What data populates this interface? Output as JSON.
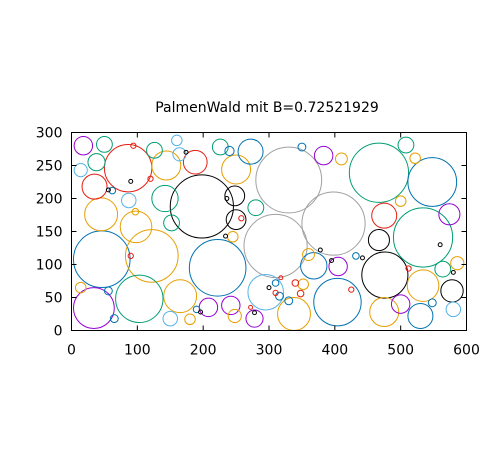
{
  "chart_data": {
    "type": "scatter",
    "title": "PalmenWald mit B=0.72521929",
    "xlabel": "",
    "ylabel": "",
    "xlim": [
      0,
      600
    ],
    "ylim": [
      0,
      300
    ],
    "x_ticks": [
      "0",
      "100",
      "200",
      "300",
      "400",
      "500",
      "600"
    ],
    "y_ticks": [
      "0",
      "50",
      "100",
      "150",
      "200",
      "250",
      "300"
    ],
    "grid": false,
    "legend": "none",
    "palette": {
      "gray": "#a0a0a0",
      "teal": "#009e73",
      "black": "#000000",
      "purple": "#9400d3",
      "blue": "#0072b2",
      "orange": "#e69f00",
      "red": "#e51e10",
      "cyan": "#56b4e9"
    },
    "circles": [
      {
        "x": 330,
        "y": 228,
        "r": 50,
        "color": "gray"
      },
      {
        "x": 398,
        "y": 162,
        "r": 48,
        "color": "gray"
      },
      {
        "x": 310,
        "y": 128,
        "r": 48,
        "color": "gray"
      },
      {
        "x": 198,
        "y": 188,
        "r": 48,
        "color": "black"
      },
      {
        "x": 46,
        "y": 108,
        "r": 43,
        "color": "blue"
      },
      {
        "x": 122,
        "y": 113,
        "r": 40,
        "color": "orange"
      },
      {
        "x": 222,
        "y": 95,
        "r": 43,
        "color": "blue"
      },
      {
        "x": 467,
        "y": 239,
        "r": 45,
        "color": "teal"
      },
      {
        "x": 534,
        "y": 141,
        "r": 45,
        "color": "teal"
      },
      {
        "x": 548,
        "y": 225,
        "r": 37,
        "color": "blue"
      },
      {
        "x": 404,
        "y": 43,
        "r": 36,
        "color": "blue"
      },
      {
        "x": 476,
        "y": 84,
        "r": 35,
        "color": "black"
      },
      {
        "x": 86,
        "y": 246,
        "r": 36,
        "color": "red"
      },
      {
        "x": 103,
        "y": 48,
        "r": 36,
        "color": "teal"
      },
      {
        "x": 34,
        "y": 34,
        "r": 31,
        "color": "purple"
      },
      {
        "x": 295,
        "y": 58,
        "r": 27,
        "color": "cyan"
      },
      {
        "x": 338,
        "y": 25,
        "r": 25,
        "color": "orange"
      },
      {
        "x": 165,
        "y": 52,
        "r": 25,
        "color": "orange"
      },
      {
        "x": 475,
        "y": 28,
        "r": 22,
        "color": "orange"
      },
      {
        "x": 534,
        "y": 68,
        "r": 24,
        "color": "orange"
      },
      {
        "x": 98,
        "y": 157,
        "r": 24,
        "color": "orange"
      },
      {
        "x": 45,
        "y": 176,
        "r": 25,
        "color": "orange"
      },
      {
        "x": 144,
        "y": 250,
        "r": 22,
        "color": "orange"
      },
      {
        "x": 250,
        "y": 244,
        "r": 22,
        "color": "orange"
      },
      {
        "x": 368,
        "y": 98,
        "r": 20,
        "color": "blue"
      },
      {
        "x": 142,
        "y": 200,
        "r": 20,
        "color": "teal"
      },
      {
        "x": 272,
        "y": 271,
        "r": 19,
        "color": "blue"
      },
      {
        "x": 188,
        "y": 255,
        "r": 18,
        "color": "red"
      },
      {
        "x": 475,
        "y": 174,
        "r": 19,
        "color": "red"
      },
      {
        "x": 467,
        "y": 137,
        "r": 16,
        "color": "black"
      },
      {
        "x": 248,
        "y": 204,
        "r": 15,
        "color": "black"
      },
      {
        "x": 250,
        "y": 168,
        "r": 15,
        "color": "black"
      },
      {
        "x": 578,
        "y": 60,
        "r": 17,
        "color": "black"
      },
      {
        "x": 530,
        "y": 22,
        "r": 19,
        "color": "blue"
      },
      {
        "x": 574,
        "y": 176,
        "r": 16,
        "color": "purple"
      },
      {
        "x": 35,
        "y": 218,
        "r": 19,
        "color": "red"
      },
      {
        "x": 405,
        "y": 97,
        "r": 14,
        "color": "purple"
      },
      {
        "x": 208,
        "y": 35,
        "r": 14,
        "color": "purple"
      },
      {
        "x": 242,
        "y": 38,
        "r": 14,
        "color": "purple"
      },
      {
        "x": 500,
        "y": 40,
        "r": 14,
        "color": "purple"
      },
      {
        "x": 383,
        "y": 265,
        "r": 14,
        "color": "purple"
      },
      {
        "x": 278,
        "y": 18,
        "r": 13,
        "color": "purple"
      },
      {
        "x": 18,
        "y": 280,
        "r": 14,
        "color": "purple"
      },
      {
        "x": 50,
        "y": 282,
        "r": 12,
        "color": "teal"
      },
      {
        "x": 38,
        "y": 255,
        "r": 13,
        "color": "teal"
      },
      {
        "x": 152,
        "y": 163,
        "r": 12,
        "color": "teal"
      },
      {
        "x": 280,
        "y": 186,
        "r": 12,
        "color": "teal"
      },
      {
        "x": 226,
        "y": 278,
        "r": 12,
        "color": "teal"
      },
      {
        "x": 508,
        "y": 281,
        "r": 12,
        "color": "teal"
      },
      {
        "x": 564,
        "y": 93,
        "r": 12,
        "color": "teal"
      },
      {
        "x": 126,
        "y": 273,
        "r": 12,
        "color": "teal"
      },
      {
        "x": 164,
        "y": 267,
        "r": 10,
        "color": "cyan"
      },
      {
        "x": 14,
        "y": 243,
        "r": 10,
        "color": "cyan"
      },
      {
        "x": 87,
        "y": 197,
        "r": 11,
        "color": "cyan"
      },
      {
        "x": 150,
        "y": 18,
        "r": 11,
        "color": "cyan"
      },
      {
        "x": 580,
        "y": 32,
        "r": 11,
        "color": "cyan"
      },
      {
        "x": 410,
        "y": 260,
        "r": 9,
        "color": "orange"
      },
      {
        "x": 522,
        "y": 261,
        "r": 8,
        "color": "orange"
      },
      {
        "x": 360,
        "y": 115,
        "r": 9,
        "color": "orange"
      },
      {
        "x": 352,
        "y": 70,
        "r": 8,
        "color": "orange"
      },
      {
        "x": 248,
        "y": 22,
        "r": 10,
        "color": "orange"
      },
      {
        "x": 180,
        "y": 17,
        "r": 8,
        "color": "orange"
      },
      {
        "x": 586,
        "y": 102,
        "r": 10,
        "color": "orange"
      },
      {
        "x": 245,
        "y": 142,
        "r": 8,
        "color": "orange"
      },
      {
        "x": 14,
        "y": 65,
        "r": 8,
        "color": "orange"
      },
      {
        "x": 500,
        "y": 196,
        "r": 8,
        "color": "orange"
      },
      {
        "x": 97,
        "y": 180,
        "r": 5,
        "color": "orange"
      },
      {
        "x": 160,
        "y": 288,
        "r": 8,
        "color": "cyan"
      },
      {
        "x": 240,
        "y": 272,
        "r": 7,
        "color": "blue"
      },
      {
        "x": 330,
        "y": 45,
        "r": 6,
        "color": "blue"
      },
      {
        "x": 310,
        "y": 72,
        "r": 5,
        "color": "blue"
      },
      {
        "x": 65,
        "y": 18,
        "r": 6,
        "color": "blue"
      },
      {
        "x": 56,
        "y": 60,
        "r": 6,
        "color": "blue"
      },
      {
        "x": 548,
        "y": 42,
        "r": 6,
        "color": "blue"
      },
      {
        "x": 350,
        "y": 278,
        "r": 6,
        "color": "blue"
      },
      {
        "x": 62,
        "y": 212,
        "r": 5,
        "color": "blue"
      },
      {
        "x": 190,
        "y": 32,
        "r": 5,
        "color": "blue"
      },
      {
        "x": 432,
        "y": 113,
        "r": 5,
        "color": "blue"
      },
      {
        "x": 316,
        "y": 52,
        "r": 6,
        "color": "blue"
      },
      {
        "x": 340,
        "y": 72,
        "r": 5,
        "color": "red"
      },
      {
        "x": 348,
        "y": 56,
        "r": 5,
        "color": "red"
      },
      {
        "x": 310,
        "y": 57,
        "r": 4,
        "color": "red"
      },
      {
        "x": 120,
        "y": 230,
        "r": 4,
        "color": "red"
      },
      {
        "x": 94,
        "y": 280,
        "r": 4,
        "color": "red"
      },
      {
        "x": 512,
        "y": 94,
        "r": 4,
        "color": "red"
      },
      {
        "x": 90,
        "y": 113,
        "r": 4,
        "color": "red"
      },
      {
        "x": 318,
        "y": 80,
        "r": 3,
        "color": "red"
      },
      {
        "x": 272,
        "y": 35,
        "r": 3,
        "color": "red"
      },
      {
        "x": 258,
        "y": 170,
        "r": 4,
        "color": "red"
      },
      {
        "x": 425,
        "y": 62,
        "r": 4,
        "color": "red"
      },
      {
        "x": 378,
        "y": 122,
        "r": 3,
        "color": "black"
      },
      {
        "x": 174,
        "y": 270,
        "r": 3,
        "color": "black"
      },
      {
        "x": 300,
        "y": 65,
        "r": 3,
        "color": "black"
      },
      {
        "x": 236,
        "y": 200,
        "r": 3,
        "color": "black"
      },
      {
        "x": 56,
        "y": 213,
        "r": 3,
        "color": "black"
      },
      {
        "x": 90,
        "y": 226,
        "r": 3,
        "color": "black"
      },
      {
        "x": 580,
        "y": 88,
        "r": 3,
        "color": "black"
      },
      {
        "x": 395,
        "y": 106,
        "r": 3,
        "color": "black"
      },
      {
        "x": 278,
        "y": 27,
        "r": 3,
        "color": "black"
      },
      {
        "x": 196,
        "y": 28,
        "r": 3,
        "color": "black"
      },
      {
        "x": 442,
        "y": 110,
        "r": 3,
        "color": "black"
      },
      {
        "x": 234,
        "y": 143,
        "r": 3,
        "color": "black"
      },
      {
        "x": 560,
        "y": 130,
        "r": 3,
        "color": "black"
      }
    ]
  }
}
